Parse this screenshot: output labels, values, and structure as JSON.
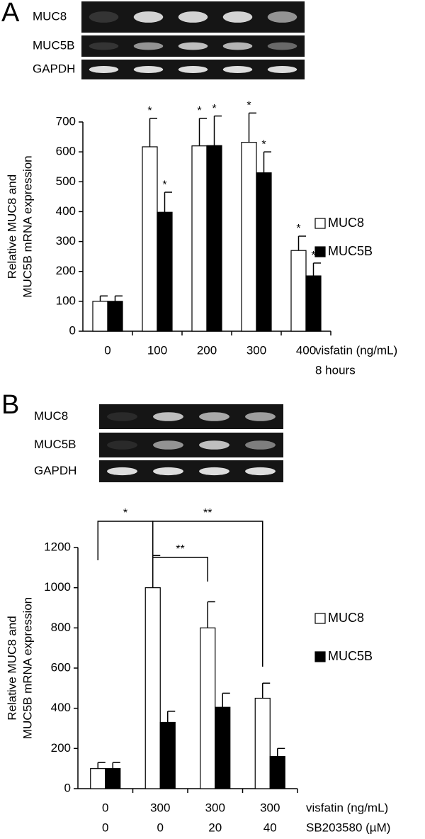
{
  "chart_data": [
    {
      "type": "bar",
      "panel_label": "A",
      "blot_labels": [
        "MUC8",
        "MUC5B",
        "GAPDH"
      ],
      "y_label": [
        "Relative MUC8 and",
        "MUC5B mRNA expression"
      ],
      "categories": [
        "0",
        "100",
        "200",
        "300",
        "400"
      ],
      "x_label": [
        "visfatin (ng/mL)",
        "8 hours"
      ],
      "ylim": [
        0,
        700
      ],
      "yticks": [
        0,
        100,
        200,
        300,
        400,
        500,
        600,
        700
      ],
      "series": [
        {
          "name": "MUC8",
          "color": "#ffffff",
          "values": [
            100,
            617,
            620,
            632,
            270
          ],
          "errors": [
            18,
            95,
            92,
            98,
            48
          ],
          "annotations": [
            null,
            "*",
            "*",
            "*",
            "*"
          ]
        },
        {
          "name": "MUC5B",
          "color": "#000000",
          "values": [
            100,
            398,
            621,
            530,
            185
          ],
          "errors": [
            18,
            67,
            99,
            70,
            43
          ],
          "annotations": [
            null,
            "*",
            "*",
            "*",
            "*"
          ]
        }
      ]
    },
    {
      "type": "bar",
      "panel_label": "B",
      "blot_labels": [
        "MUC8",
        "MUC5B",
        "GAPDH"
      ],
      "y_label": [
        "Relative MUC8 and",
        "MUC5B mRNA expression"
      ],
      "categories": [
        "0",
        "300",
        "300",
        "300"
      ],
      "categories_2": [
        "0",
        "0",
        "20",
        "40"
      ],
      "x_label": [
        "visfatin (ng/mL)",
        "SB203580 (µM)"
      ],
      "ylim": [
        0,
        1200
      ],
      "yticks": [
        0,
        200,
        400,
        600,
        800,
        1000,
        1200
      ],
      "series": [
        {
          "name": "MUC8",
          "color": "#ffffff",
          "values": [
            100,
            1000,
            800,
            450
          ],
          "errors": [
            30,
            160,
            130,
            75
          ]
        },
        {
          "name": "MUC5B",
          "color": "#000000",
          "values": [
            100,
            330,
            405,
            160
          ],
          "errors": [
            30,
            55,
            70,
            40
          ]
        }
      ],
      "comparisons": [
        {
          "from": 0,
          "to": 1,
          "label": "*"
        },
        {
          "from": 1,
          "to": 2,
          "label": "**"
        },
        {
          "from": 1,
          "to": 3,
          "label": "**"
        }
      ]
    }
  ]
}
